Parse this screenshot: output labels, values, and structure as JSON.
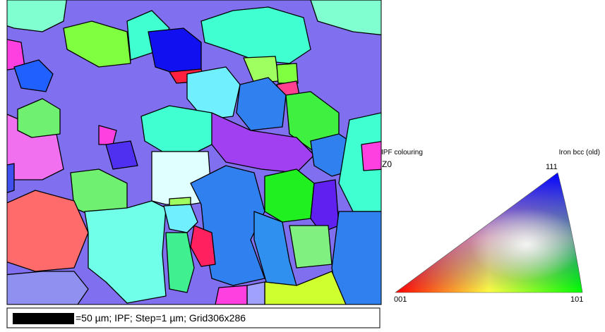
{
  "map": {
    "caption": "=50 µm; IPF; Step=1 µm; Grid306x286"
  },
  "key": {
    "title": "IPF colouring",
    "direction": "Z0",
    "phase": "Iron bcc (old)",
    "corners": {
      "top": "111",
      "left": "001",
      "right": "101"
    }
  }
}
